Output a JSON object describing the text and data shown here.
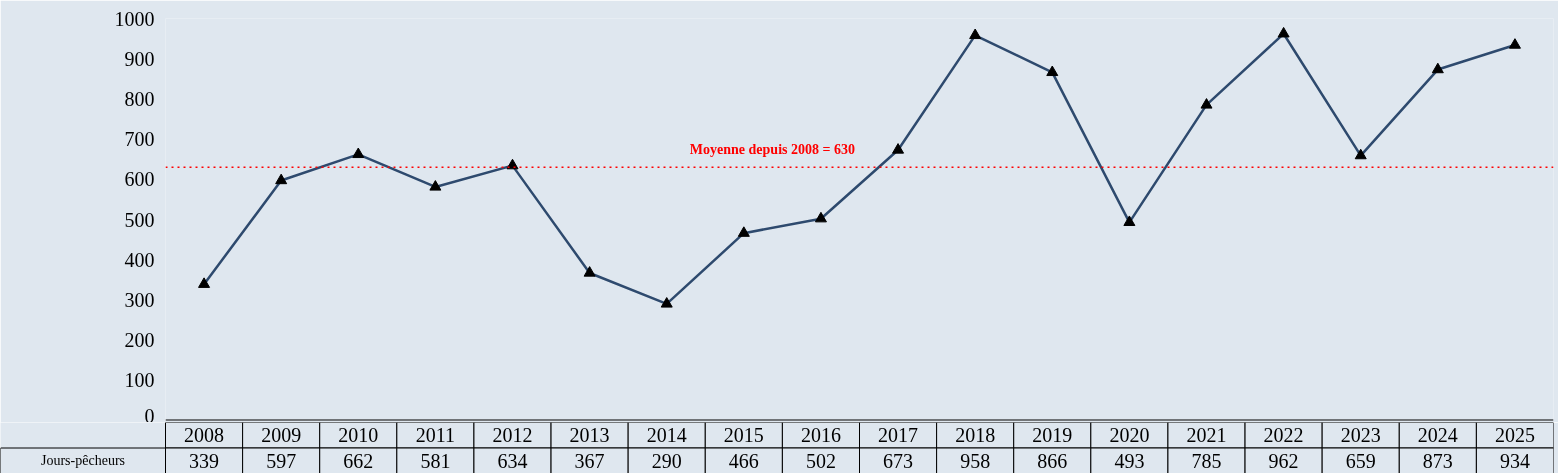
{
  "chart_data": {
    "type": "line",
    "categories": [
      "2008",
      "2009",
      "2010",
      "2011",
      "2012",
      "2013",
      "2014",
      "2015",
      "2016",
      "2017",
      "2018",
      "2019",
      "2020",
      "2021",
      "2022",
      "2023",
      "2024",
      "2025"
    ],
    "series": [
      {
        "name": "Jours-pêcheurs",
        "color": "#2e4a6e",
        "values": [
          339,
          597,
          662,
          581,
          634,
          367,
          290,
          466,
          502,
          673,
          958,
          866,
          493,
          785,
          962,
          659,
          873,
          934
        ]
      }
    ],
    "ylim": [
      0,
      1000
    ],
    "yticks": [
      0,
      100,
      200,
      300,
      400,
      500,
      600,
      700,
      800,
      900,
      1000
    ],
    "ref_lines": [
      {
        "axis": "y",
        "value": 630,
        "label": "Moyenne depuis 2008 = 630",
        "color": "#ff0000",
        "line_style": "dotted"
      }
    ],
    "marker": "triangle",
    "line_style": "solid",
    "grid": false,
    "legend": "bottom left",
    "data_labels": true
  }
}
